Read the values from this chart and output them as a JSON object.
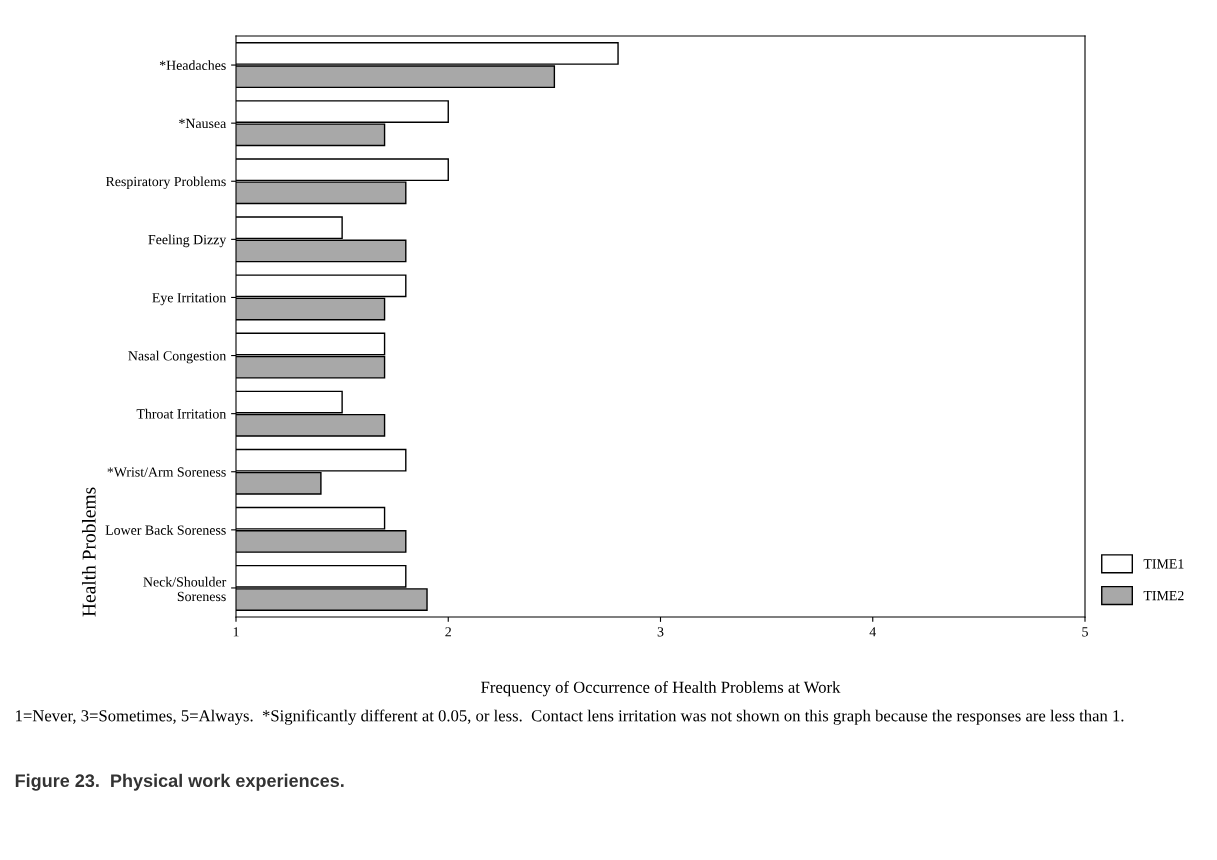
{
  "chart_data": {
    "type": "bar",
    "orientation": "horizontal",
    "title": "Figure 23.  Physical work experiences.",
    "xlabel": "Frequency of Occurrence of Health Problems at Work",
    "ylabel": "Health Problems",
    "categories": [
      "*Headaches",
      "*Nausea",
      "Respiratory Problems",
      "Feeling Dizzy",
      "Eye Irritation",
      "Nasal Congestion",
      "Throat Irritation",
      "*Wrist/Arm Soreness",
      "Lower Back Soreness",
      "Neck/Shoulder\nSoreness"
    ],
    "series": [
      {
        "name": "TIME1",
        "color": "#ffffff",
        "values": [
          2.8,
          2.0,
          2.0,
          1.5,
          1.8,
          1.7,
          1.5,
          1.8,
          1.7,
          1.8
        ]
      },
      {
        "name": "TIME2",
        "color": "#a8a8a8",
        "values": [
          2.5,
          1.7,
          1.8,
          1.8,
          1.7,
          1.7,
          1.7,
          1.4,
          1.8,
          1.9
        ]
      }
    ],
    "xlim": [
      1,
      5
    ],
    "xticks": [
      1,
      2,
      3,
      4,
      5
    ],
    "grid": false,
    "legend": "bottom right",
    "annotations": [
      "1=Never, 3=Sometimes, 5=Always.  *Significantly different at 0.05, or less.  Contact lens irritation was not shown on this graph because the responses are less than 1."
    ]
  }
}
